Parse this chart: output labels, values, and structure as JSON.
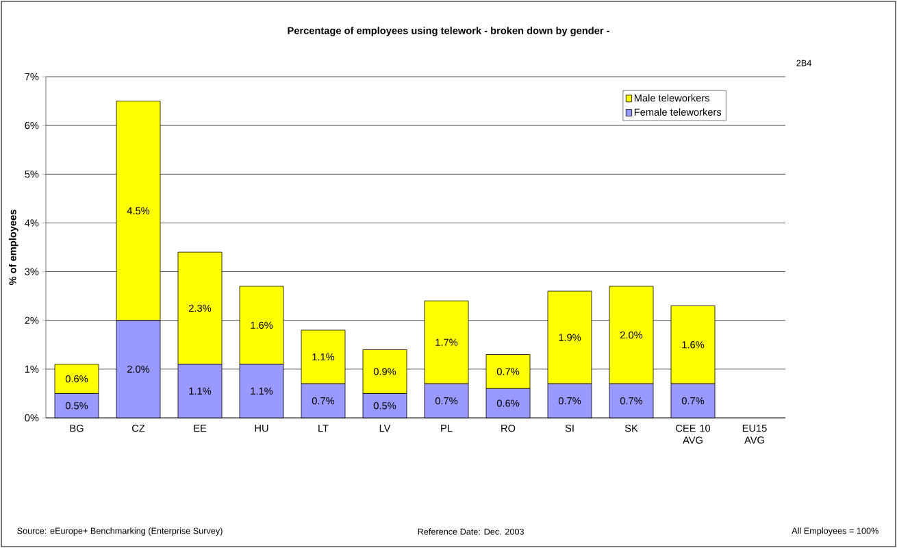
{
  "chart_data": {
    "type": "bar",
    "stacked": true,
    "title": "Percentage of employees using telework - broken down by gender -",
    "ylabel": "% of employees",
    "categories": [
      "BG",
      "CZ",
      "EE",
      "HU",
      "LT",
      "LV",
      "PL",
      "RO",
      "SI",
      "SK",
      "CEE 10 AVG",
      "EU15 AVG"
    ],
    "series": [
      {
        "name": "Female teleworkers",
        "color": "#9999ff",
        "values": [
          0.5,
          2.0,
          1.1,
          1.1,
          0.7,
          0.5,
          0.7,
          0.6,
          0.7,
          0.7,
          0.7,
          null
        ],
        "value_labels": [
          "0.5%",
          "2.0%",
          "1.1%",
          "1.1%",
          "0.7%",
          "0.5%",
          "0.7%",
          "0.6%",
          "0.7%",
          "0.7%",
          "0.7%",
          null
        ]
      },
      {
        "name": "Male teleworkers",
        "color": "#ffff00",
        "values": [
          0.6,
          4.5,
          2.3,
          1.6,
          1.1,
          0.9,
          1.7,
          0.7,
          1.9,
          2.0,
          1.6,
          null
        ],
        "value_labels": [
          "0.6%",
          "4.5%",
          "2.3%",
          "1.6%",
          "1.1%",
          "0.9%",
          "1.7%",
          "0.7%",
          "1.9%",
          "2.0%",
          "1.6%",
          null
        ]
      }
    ],
    "ylim": [
      0,
      7
    ],
    "yticks": [
      {
        "value": 0,
        "label": "0%"
      },
      {
        "value": 1,
        "label": "1%"
      },
      {
        "value": 2,
        "label": "2%"
      },
      {
        "value": 3,
        "label": "3%"
      },
      {
        "value": 4,
        "label": "4%"
      },
      {
        "value": 5,
        "label": "5%"
      },
      {
        "value": 6,
        "label": "6%"
      },
      {
        "value": 7,
        "label": "7%"
      }
    ],
    "grid": "y",
    "legend": "top right",
    "annotations": [
      "2B4",
      "Source: eEurope+ Benchmarking (Enterprise Survey)",
      "Reference Date: Dec. 2003",
      "All Employees = 100%"
    ]
  }
}
